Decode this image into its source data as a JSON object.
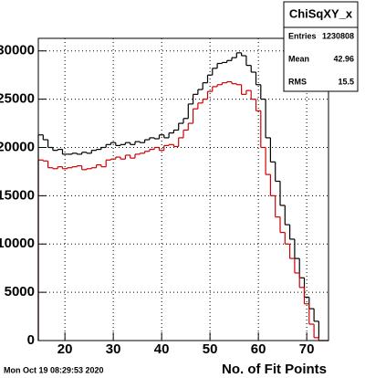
{
  "chart_data": {
    "type": "histogram",
    "stats_title": "ChiSqXY_x",
    "stats": [
      {
        "label": "Entries",
        "value": "1230808"
      },
      {
        "label": "Mean",
        "value": "42.96"
      },
      {
        "label": "RMS",
        "value": "15.5"
      }
    ],
    "xlabel": "No. of Fit Points",
    "timestamp": "Mon Oct 19 08:29:53 2020",
    "bins": [
      14.5,
      15.5,
      16.5,
      17.5,
      18.5,
      19.5,
      20.5,
      21.5,
      22.5,
      23.5,
      24.5,
      25.5,
      26.5,
      27.5,
      28.5,
      29.5,
      30.5,
      31.5,
      32.5,
      33.5,
      34.5,
      35.5,
      36.5,
      37.5,
      38.5,
      39.5,
      40.5,
      41.5,
      42.5,
      43.5,
      44.5,
      45.5,
      46.5,
      47.5,
      48.5,
      49.5,
      50.5,
      51.5,
      52.5,
      53.5,
      54.5,
      55.5,
      56.5,
      57.5,
      58.5,
      59.5,
      60.5,
      61.5,
      62.5,
      63.5,
      64.5,
      65.5,
      66.5,
      67.5,
      68.5,
      69.5,
      70.5,
      71.5,
      72.5,
      73.5,
      74.5
    ],
    "series": [
      {
        "color": "#000000",
        "values": [
          21300,
          20800,
          20000,
          19700,
          19800,
          19300,
          19300,
          19400,
          19300,
          19500,
          19400,
          19700,
          19800,
          20000,
          20300,
          20500,
          20200,
          20300,
          20500,
          20300,
          20600,
          20500,
          20800,
          21000,
          20900,
          21300,
          21000,
          21500,
          21800,
          22500,
          23000,
          24500,
          25500,
          26000,
          26700,
          27500,
          28200,
          28700,
          28800,
          29000,
          29300,
          29800,
          29500,
          28500,
          27800,
          26500,
          25000,
          21000,
          18500,
          16500,
          14000,
          12000,
          10500,
          8500,
          6500,
          4500,
          3300,
          2000,
          0,
          0
        ]
      },
      {
        "color": "#d00000",
        "values": [
          18700,
          18600,
          17900,
          17800,
          18000,
          17800,
          17900,
          18000,
          18100,
          17700,
          17800,
          17900,
          18200,
          18000,
          18700,
          18800,
          19000,
          18800,
          19200,
          18900,
          19300,
          19400,
          19600,
          19800,
          20000,
          19700,
          20200,
          20300,
          20100,
          21000,
          21800,
          22500,
          24000,
          24600,
          25000,
          25800,
          26300,
          26500,
          26700,
          26800,
          26600,
          26500,
          25500,
          25900,
          25000,
          23800,
          20000,
          17200,
          15000,
          12800,
          11200,
          10000,
          8500,
          7000,
          5500,
          3800,
          1700,
          300,
          0,
          0
        ]
      }
    ],
    "xlim": [
      14.5,
      74.5
    ],
    "ylim": [
      0,
      31300
    ],
    "xticks": [
      20,
      30,
      40,
      50,
      60,
      70
    ],
    "yticks": [
      0,
      5000,
      10000,
      15000,
      20000,
      25000,
      30000
    ],
    "grid": true
  }
}
